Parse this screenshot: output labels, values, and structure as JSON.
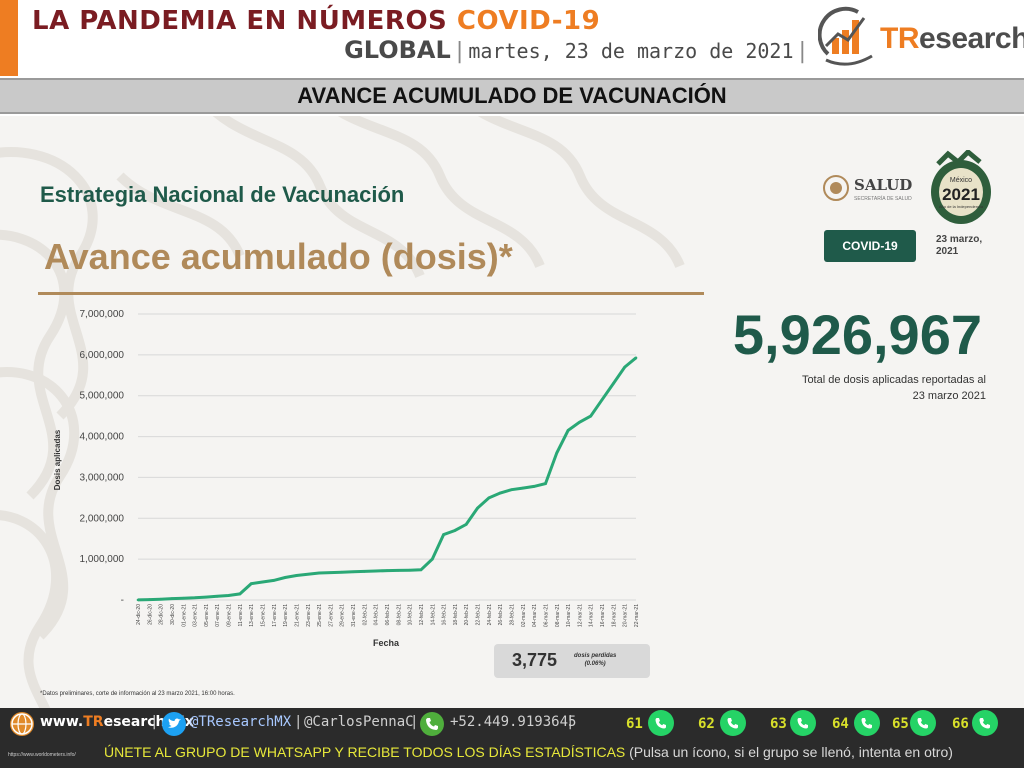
{
  "header": {
    "title_main": "LA PANDEMIA EN NÚMEROS",
    "title_accent": "COVID-19",
    "global": "GLOBAL",
    "separator": "|",
    "date": "martes, 23 de marzo de 2021",
    "end_separator": "|",
    "logo_text_accent": "TR",
    "logo_text_rest": "esearch"
  },
  "section_title": "AVANCE ACUMULADO DE VACUNACIÓN",
  "slide": {
    "strategy": "Estrategia Nacional de Vacunación",
    "heading": "Avance acumulado (dosis)*",
    "salud_text": "SALUD",
    "salud_sub": "SECRETARÍA DE SALUD",
    "seal_line1": "México",
    "seal_year": "2021",
    "seal_line2": "Año de la Independencia",
    "badge": "COVID-19",
    "badge_date_line1": "23 marzo,",
    "badge_date_line2": "2021",
    "total_value": "5,926,967",
    "total_label_line1": "Total de dosis aplicadas reportadas al",
    "total_label_line2": "23 marzo 2021",
    "lost_value": "3,775",
    "lost_label_line1": "dosis perdidas",
    "lost_label_line2": "(0.06%)",
    "footnote": "*Datos preliminares, corte de información al 23 marzo 2021, 16:00 horas."
  },
  "chart_data": {
    "type": "line",
    "title": "",
    "xlabel": "Fecha",
    "ylabel": "Dosis aplicadas",
    "ylim": [
      0,
      7000000
    ],
    "yticks": [
      "7,000,000",
      "6,000,000",
      "5,000,000",
      "4,000,000",
      "3,000,000",
      "2,000,000",
      "1,000,000",
      "-"
    ],
    "ytick_values": [
      7000000,
      6000000,
      5000000,
      4000000,
      3000000,
      2000000,
      1000000,
      0
    ],
    "grid": true,
    "legend": "none",
    "line_color": "#2aa876",
    "x": [
      "24-dic-20",
      "26-dic-20",
      "28-dic-20",
      "30-dic-20",
      "01-ene-21",
      "03-ene-21",
      "05-ene-21",
      "07-ene-21",
      "09-ene-21",
      "11-ene-21",
      "13-ene-21",
      "15-ene-21",
      "17-ene-21",
      "19-ene-21",
      "21-ene-21",
      "23-ene-21",
      "25-ene-21",
      "27-ene-21",
      "29-ene-21",
      "31-ene-21",
      "02-feb-21",
      "04-feb-21",
      "06-feb-21",
      "08-feb-21",
      "10-feb-21",
      "12-feb-21",
      "14-feb-21",
      "16-feb-21",
      "18-feb-21",
      "20-feb-21",
      "22-feb-21",
      "24-feb-21",
      "26-feb-21",
      "28-feb-21",
      "02-mar-21",
      "04-mar-21",
      "06-mar-21",
      "08-mar-21",
      "10-mar-21",
      "12-mar-21",
      "14-mar-21",
      "16-mar-21",
      "18-mar-21",
      "20-mar-21",
      "22-mar-21"
    ],
    "values": [
      3000,
      10000,
      20000,
      35000,
      45000,
      55000,
      70000,
      90000,
      110000,
      150000,
      400000,
      440000,
      480000,
      550000,
      600000,
      630000,
      660000,
      670000,
      680000,
      690000,
      700000,
      710000,
      720000,
      725000,
      730000,
      740000,
      1000000,
      1600000,
      1700000,
      1850000,
      2250000,
      2500000,
      2620000,
      2700000,
      2740000,
      2780000,
      2850000,
      3600000,
      4150000,
      4350000,
      4500000,
      4900000,
      5300000,
      5700000,
      5926967
    ]
  },
  "footer": {
    "web_accent": "TR",
    "web_prefix": "www.",
    "web_rest": "esearch.Mx",
    "sep1": "|",
    "twitter": "@TResearchMX",
    "sep2": "|",
    "personal": "@CarlosPennaC",
    "sep3": "|",
    "phone": "+52.449.9193645",
    "sep4": "|",
    "whatsapp_groups": [
      "61",
      "62",
      "63",
      "64",
      "65",
      "66"
    ],
    "cta_yellow": "ÚNETE AL GRUPO DE WHATSAPP Y RECIBE TODOS LOS DÍAS ESTADÍSTICAS",
    "cta_light": "(Pulsa un ícono, si el grupo se llenó, intenta en otro)",
    "tiny_url": "https://www.worldometers.info/"
  }
}
